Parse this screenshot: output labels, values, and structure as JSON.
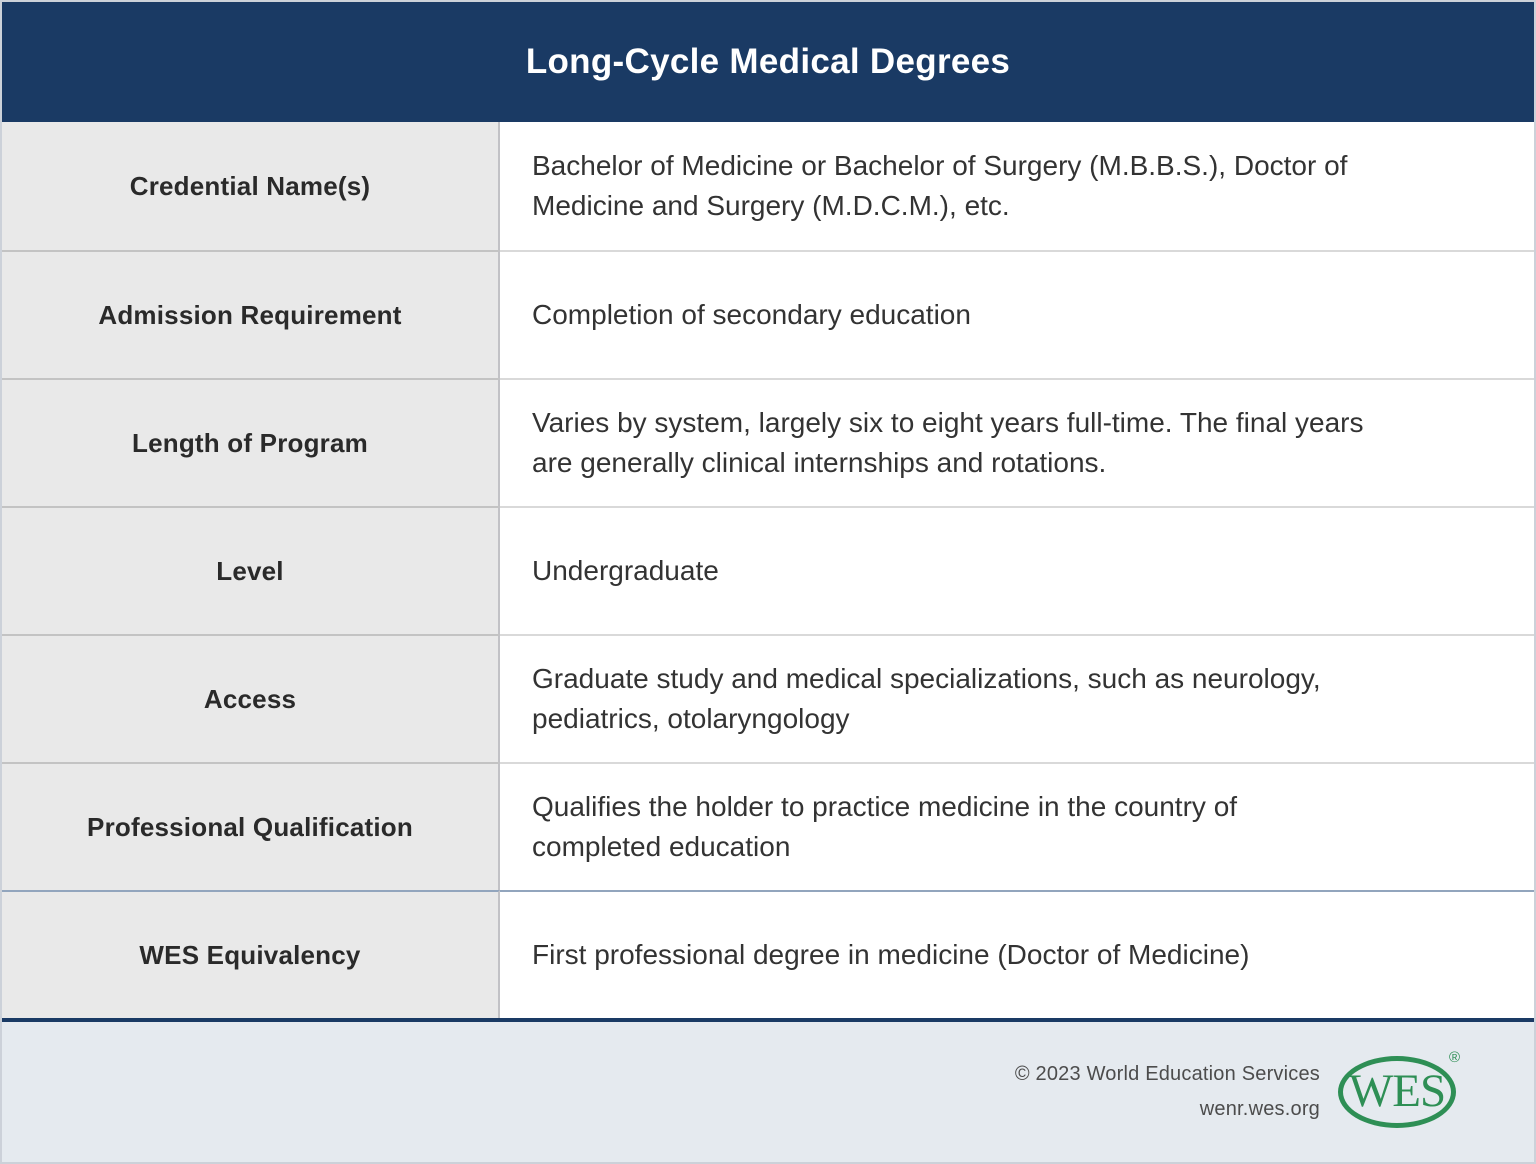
{
  "header": {
    "title": "Long-Cycle Medical Degrees"
  },
  "table": {
    "rows": [
      {
        "label": "Credential Name(s)",
        "value": "Bachelor of Medicine or Bachelor of Surgery (M.B.B.S.), Doctor of\nMedicine and Surgery (M.D.C.M.), etc."
      },
      {
        "label": "Admission Requirement",
        "value": "Completion of secondary education"
      },
      {
        "label": "Length of Program",
        "value": "Varies by system, largely six to eight years full-time. The final years\nare generally clinical internships and rotations."
      },
      {
        "label": "Level",
        "value": "Undergraduate"
      },
      {
        "label": "Access",
        "value": "Graduate study and medical specializations, such as neurology,\npediatrics, otolaryngology"
      },
      {
        "label": "Professional Qualification",
        "value": "Qualifies the holder to practice medicine in the country of\ncompleted education"
      },
      {
        "label": "WES Equivalency",
        "value": "First professional degree in medicine (Doctor of Medicine)"
      }
    ]
  },
  "footer": {
    "copyright": "© 2023 World Education Services",
    "website": "wenr.wes.org",
    "logo_text": "WES",
    "logo_registered": "®"
  },
  "colors": {
    "header_bg": "#1a3a64",
    "label_cell_bg": "#e9e9e9",
    "footer_bg": "#e5eaef",
    "divider_gray": "#c3c3c3",
    "divider_blue": "#92a5bd",
    "logo_green": "#2e8f55"
  }
}
